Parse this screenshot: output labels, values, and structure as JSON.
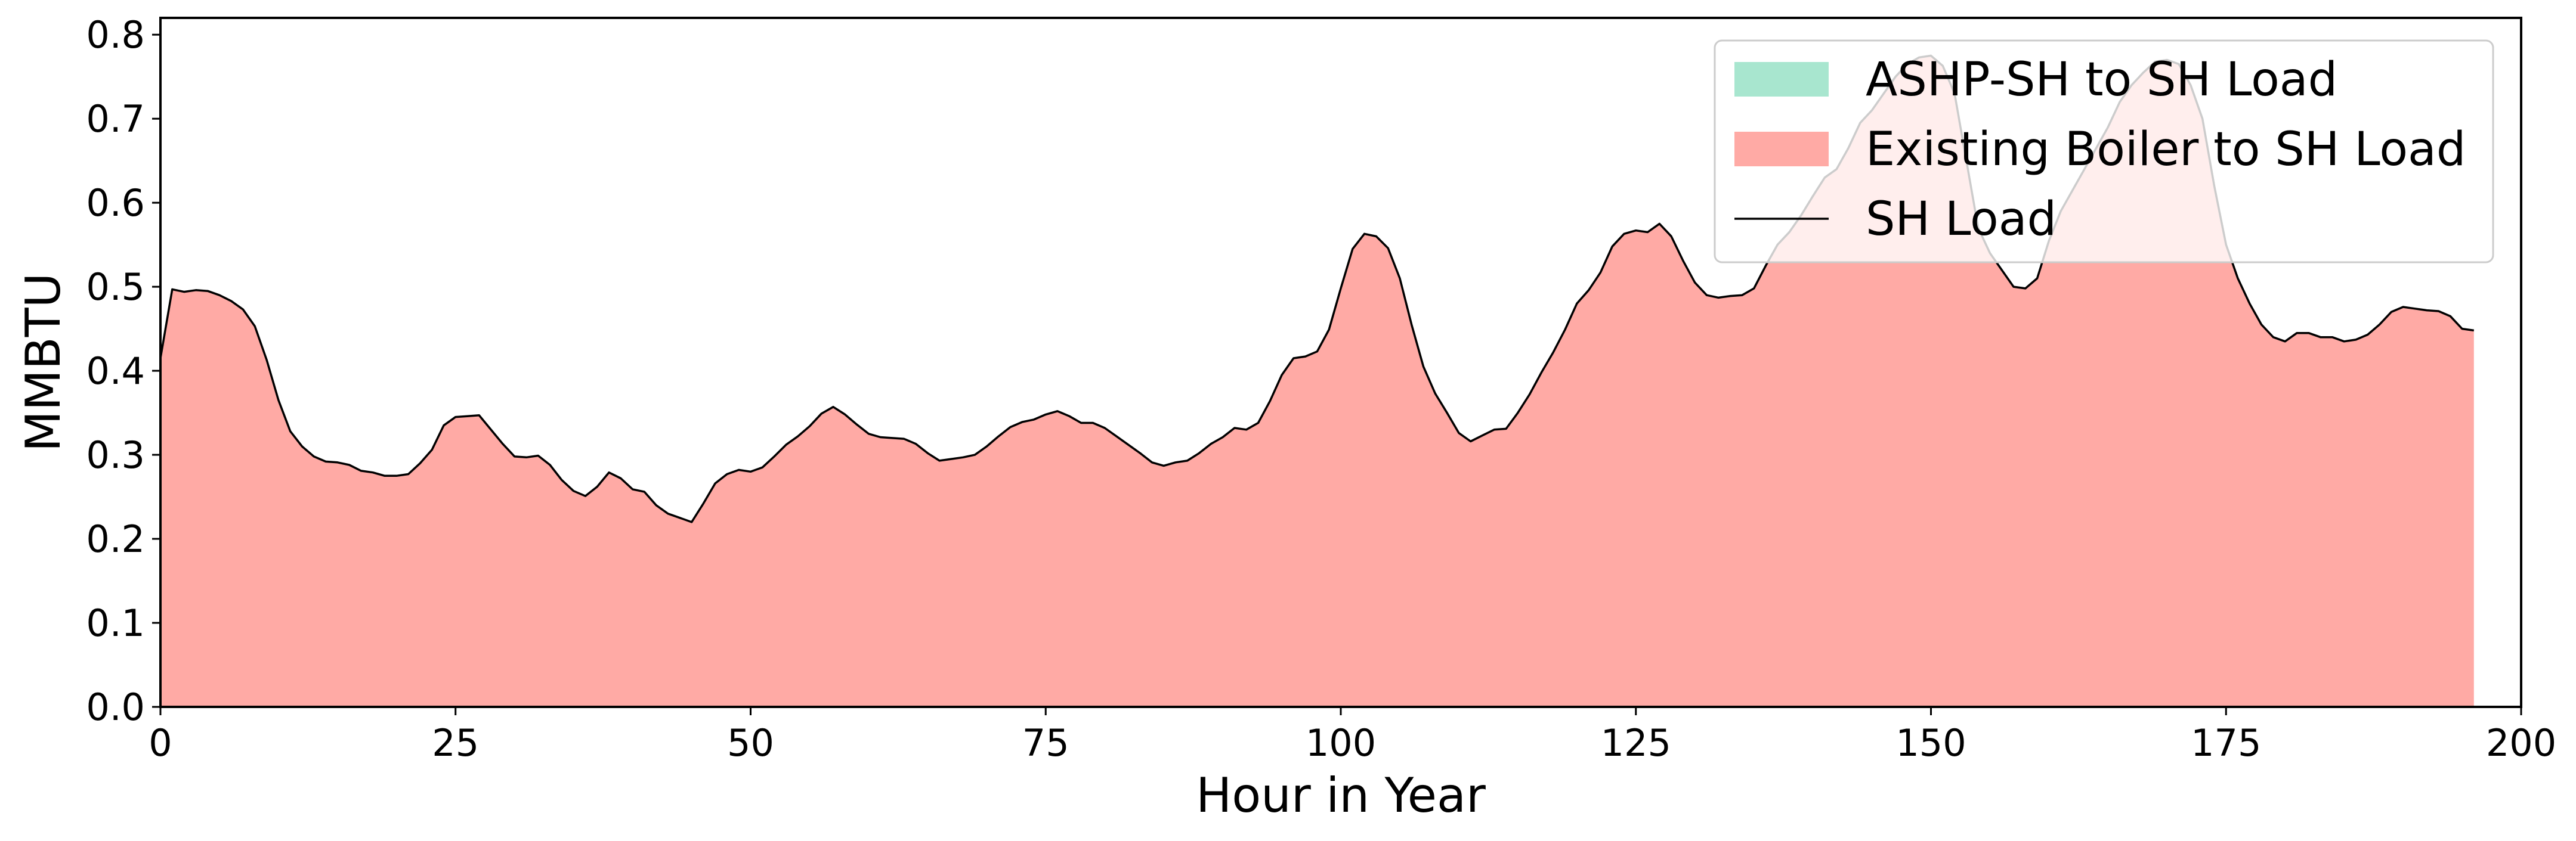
{
  "chart_data": {
    "type": "area",
    "title": "",
    "xlabel": "Hour in Year",
    "ylabel": "MMBTU",
    "xlim": [
      0,
      200
    ],
    "ylim": [
      0,
      0.82
    ],
    "xticks": [
      "0",
      "25",
      "50",
      "75",
      "100",
      "125",
      "150",
      "175",
      "200"
    ],
    "yticks": [
      "0.0",
      "0.1",
      "0.2",
      "0.3",
      "0.4",
      "0.5",
      "0.6",
      "0.7",
      "0.8"
    ],
    "grid": false,
    "legend_placement": "top-right",
    "colors": {
      "ashp": "#a8e6cf",
      "boiler": "#ffaaa5",
      "load": "#000000"
    },
    "legend": [
      {
        "label": "ASHP-SH to SH Load",
        "kind": "patch",
        "color": "#a8e6cf"
      },
      {
        "label": "Existing Boiler to SH Load",
        "kind": "patch",
        "color": "#ffaaa5"
      },
      {
        "label": "SH Load",
        "kind": "line",
        "color": "#000000"
      }
    ],
    "series": [
      {
        "name": "ASHP-SH to SH Load",
        "kind": "area",
        "values": []
      },
      {
        "name": "Existing Boiler to SH Load",
        "kind": "area",
        "values": [
          0.415,
          0.497,
          0.494,
          0.496,
          0.495,
          0.49,
          0.483,
          0.473,
          0.453,
          0.413,
          0.365,
          0.328,
          0.31,
          0.298,
          0.292,
          0.291,
          0.288,
          0.281,
          0.279,
          0.275,
          0.275,
          0.277,
          0.29,
          0.306,
          0.335,
          0.345,
          0.346,
          0.347,
          0.33,
          0.313,
          0.298,
          0.297,
          0.299,
          0.288,
          0.27,
          0.257,
          0.251,
          0.262,
          0.279,
          0.272,
          0.259,
          0.256,
          0.24,
          0.23,
          0.225,
          0.22,
          0.242,
          0.266,
          0.277,
          0.282,
          0.28,
          0.285,
          0.298,
          0.312,
          0.322,
          0.334,
          0.349,
          0.357,
          0.348,
          0.336,
          0.325,
          0.321,
          0.32,
          0.319,
          0.313,
          0.302,
          0.293,
          0.295,
          0.297,
          0.3,
          0.31,
          0.322,
          0.333,
          0.339,
          0.342,
          0.348,
          0.352,
          0.346,
          0.338,
          0.338,
          0.332,
          0.322,
          0.312,
          0.302,
          0.291,
          0.287,
          0.291,
          0.293,
          0.302,
          0.313,
          0.321,
          0.332,
          0.33,
          0.338,
          0.364,
          0.395,
          0.415,
          0.417,
          0.423,
          0.449,
          0.498,
          0.545,
          0.563,
          0.56,
          0.546,
          0.51,
          0.455,
          0.405,
          0.373,
          0.35,
          0.326,
          0.316,
          0.323,
          0.33,
          0.331,
          0.35,
          0.372,
          0.398,
          0.422,
          0.449,
          0.48,
          0.496,
          0.517,
          0.548,
          0.563,
          0.567,
          0.565,
          0.575,
          0.56,
          0.531,
          0.505,
          0.49,
          0.487,
          0.489,
          0.49,
          0.498,
          0.525,
          0.55,
          0.565,
          0.585,
          0.608,
          0.63,
          0.64,
          0.665,
          0.695,
          0.71,
          0.73,
          0.75,
          0.765,
          0.773,
          0.775,
          0.763,
          0.73,
          0.65,
          0.57,
          0.54,
          0.52,
          0.5,
          0.498,
          0.51,
          0.555,
          0.59,
          0.615,
          0.64,
          0.665,
          0.69,
          0.72,
          0.74,
          0.755,
          0.768,
          0.77,
          0.765,
          0.74,
          0.7,
          0.62,
          0.55,
          0.51,
          0.48,
          0.455,
          0.44,
          0.435,
          0.445,
          0.445,
          0.44,
          0.44,
          0.435,
          0.437,
          0.443,
          0.455,
          0.47,
          0.476,
          0.474,
          0.472,
          0.471,
          0.465,
          0.45,
          0.448
        ]
      },
      {
        "name": "SH Load",
        "kind": "line",
        "values": [
          0.415,
          0.497,
          0.494,
          0.496,
          0.495,
          0.49,
          0.483,
          0.473,
          0.453,
          0.413,
          0.365,
          0.328,
          0.31,
          0.298,
          0.292,
          0.291,
          0.288,
          0.281,
          0.279,
          0.275,
          0.275,
          0.277,
          0.29,
          0.306,
          0.335,
          0.345,
          0.346,
          0.347,
          0.33,
          0.313,
          0.298,
          0.297,
          0.299,
          0.288,
          0.27,
          0.257,
          0.251,
          0.262,
          0.279,
          0.272,
          0.259,
          0.256,
          0.24,
          0.23,
          0.225,
          0.22,
          0.242,
          0.266,
          0.277,
          0.282,
          0.28,
          0.285,
          0.298,
          0.312,
          0.322,
          0.334,
          0.349,
          0.357,
          0.348,
          0.336,
          0.325,
          0.321,
          0.32,
          0.319,
          0.313,
          0.302,
          0.293,
          0.295,
          0.297,
          0.3,
          0.31,
          0.322,
          0.333,
          0.339,
          0.342,
          0.348,
          0.352,
          0.346,
          0.338,
          0.338,
          0.332,
          0.322,
          0.312,
          0.302,
          0.291,
          0.287,
          0.291,
          0.293,
          0.302,
          0.313,
          0.321,
          0.332,
          0.33,
          0.338,
          0.364,
          0.395,
          0.415,
          0.417,
          0.423,
          0.449,
          0.498,
          0.545,
          0.563,
          0.56,
          0.546,
          0.51,
          0.455,
          0.405,
          0.373,
          0.35,
          0.326,
          0.316,
          0.323,
          0.33,
          0.331,
          0.35,
          0.372,
          0.398,
          0.422,
          0.449,
          0.48,
          0.496,
          0.517,
          0.548,
          0.563,
          0.567,
          0.565,
          0.575,
          0.56,
          0.531,
          0.505,
          0.49,
          0.487,
          0.489,
          0.49,
          0.498,
          0.525,
          0.55,
          0.565,
          0.585,
          0.608,
          0.63,
          0.64,
          0.665,
          0.695,
          0.71,
          0.73,
          0.75,
          0.765,
          0.773,
          0.775,
          0.763,
          0.73,
          0.65,
          0.57,
          0.54,
          0.52,
          0.5,
          0.498,
          0.51,
          0.555,
          0.59,
          0.615,
          0.64,
          0.665,
          0.69,
          0.72,
          0.74,
          0.755,
          0.768,
          0.77,
          0.765,
          0.74,
          0.7,
          0.62,
          0.55,
          0.51,
          0.48,
          0.455,
          0.44,
          0.435,
          0.445,
          0.445,
          0.44,
          0.44,
          0.435,
          0.437,
          0.443,
          0.455,
          0.47,
          0.476,
          0.474,
          0.472,
          0.471,
          0.465,
          0.45,
          0.448
        ]
      }
    ]
  }
}
